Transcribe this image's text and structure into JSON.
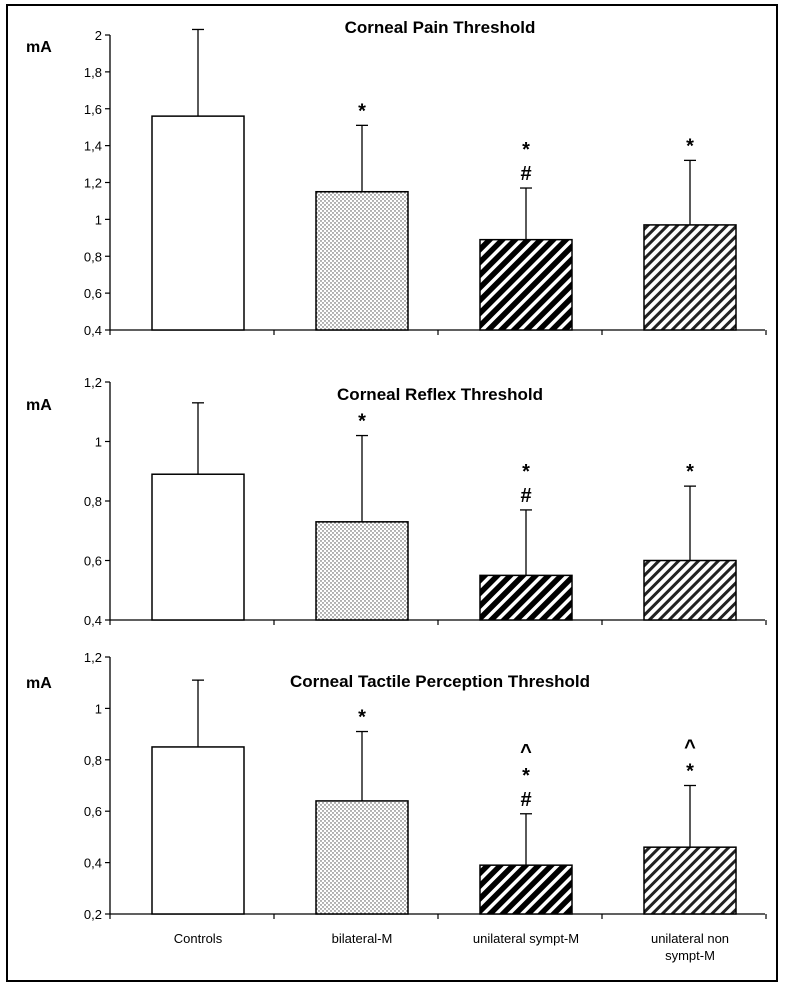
{
  "chart_data": [
    {
      "type": "bar",
      "title": "Corneal Pain Threshold",
      "ylabel": "mA",
      "ylim": [
        0.4,
        2.0
      ],
      "yticks": [
        "0,4",
        "0,6",
        "0,8",
        "1",
        "1,2",
        "1,4",
        "1,6",
        "1,8",
        "2"
      ],
      "categories": [
        "Controls",
        "bilateral-M",
        "unilateral sympt-M",
        "unilateral non sympt-M"
      ],
      "values": [
        1.56,
        1.15,
        0.89,
        0.97
      ],
      "error_upper": [
        2.03,
        1.51,
        1.17,
        1.32
      ],
      "significance": [
        [],
        [
          "*"
        ],
        [
          "*",
          "#"
        ],
        [
          "*"
        ]
      ]
    },
    {
      "type": "bar",
      "title": "Corneal Reflex Threshold",
      "ylabel": "mA",
      "ylim": [
        0.4,
        1.2
      ],
      "yticks": [
        "0,4",
        "0,6",
        "0,8",
        "1",
        "1,2"
      ],
      "categories": [
        "Controls",
        "bilateral-M",
        "unilateral sympt-M",
        "unilateral non sympt-M"
      ],
      "values": [
        0.89,
        0.73,
        0.55,
        0.6
      ],
      "error_upper": [
        1.13,
        1.02,
        0.77,
        0.85
      ],
      "significance": [
        [],
        [
          "*"
        ],
        [
          "*",
          "#"
        ],
        [
          "*"
        ]
      ]
    },
    {
      "type": "bar",
      "title": "Corneal Tactile Perception Threshold",
      "ylabel": "mA",
      "ylim": [
        0.2,
        1.2
      ],
      "yticks": [
        "0,2",
        "0,4",
        "0,6",
        "0,8",
        "1",
        "1,2"
      ],
      "categories": [
        "Controls",
        "bilateral-M",
        "unilateral sympt-M",
        "unilateral non sympt-M"
      ],
      "values": [
        0.85,
        0.64,
        0.39,
        0.46
      ],
      "error_upper": [
        1.11,
        0.91,
        0.59,
        0.7
      ],
      "significance": [
        [],
        [
          "*"
        ],
        [
          "^",
          "*",
          "#"
        ],
        [
          "^",
          "*"
        ]
      ]
    }
  ],
  "x_labels": [
    [
      "Controls"
    ],
    [
      "bilateral-M"
    ],
    [
      "unilateral sympt-M"
    ],
    [
      "unilateral non",
      "sympt-M"
    ]
  ],
  "colors": {
    "bar_stroke": "#000000",
    "bar_fill_control": "#ffffff",
    "dots": "#555555",
    "hatch": "#000000"
  }
}
